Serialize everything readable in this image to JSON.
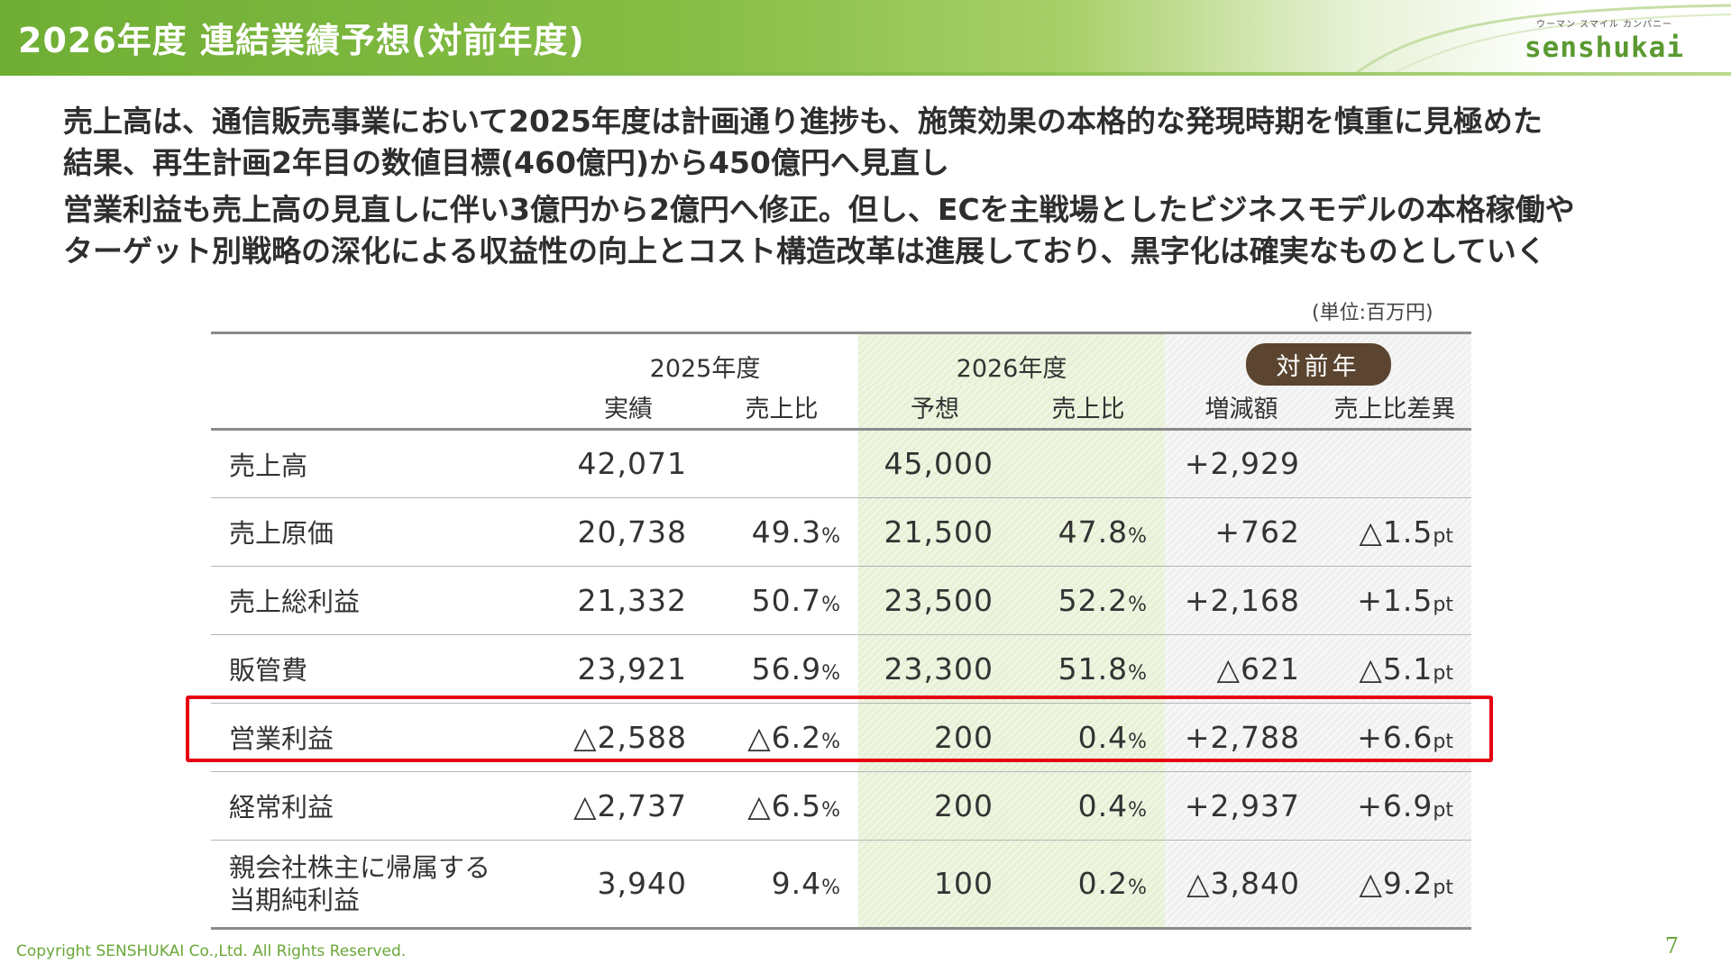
{
  "header": {
    "title": "2026年度 連結業績予想(対前年度)",
    "logo_tagline": "ウーマン スマイル カンパニー",
    "logo_word": "senshukai"
  },
  "lead": {
    "p1_line1": "売上高は、通信販売事業において2025年度は計画通り進捗も、施策効果の本格的な発現時期を慎重に見極めた",
    "p1_line2": "結果、再生計画2年目の数値目標(460億円)から450億円へ見直し",
    "p2_line1": "営業利益も売上高の見直しに伴い3億円から2億円へ修正。但し、ECを主戦場としたビジネスモデルの本格稼働や",
    "p2_line2": "ターゲット別戦略の深化による収益性の向上とコスト構造改革は進展しており、黒字化は確実なものとしていく"
  },
  "unit_note": "(単位:百万円)",
  "table": {
    "group_headers": {
      "fy2025": "2025年度",
      "fy2026": "2026年度",
      "yoy": "対前年"
    },
    "sub_headers": {
      "actual": "実績",
      "ratio_2025": "売上比",
      "forecast": "予想",
      "ratio_2026": "売上比",
      "change": "増減額",
      "ratio_diff": "売上比差異"
    },
    "rows": [
      {
        "label": "売上高",
        "actual": "42,071",
        "ratio_2025": "",
        "ratio_2025_suffix": "",
        "forecast": "45,000",
        "ratio_2026": "",
        "ratio_2026_suffix": "",
        "change": "+2,929",
        "diff": "",
        "diff_suffix": ""
      },
      {
        "label": "売上原価",
        "actual": "20,738",
        "ratio_2025": "49.3",
        "ratio_2025_suffix": "%",
        "forecast": "21,500",
        "ratio_2026": "47.8",
        "ratio_2026_suffix": "%",
        "change": "+762",
        "diff": "△1.5",
        "diff_suffix": "pt"
      },
      {
        "label": "売上総利益",
        "actual": "21,332",
        "ratio_2025": "50.7",
        "ratio_2025_suffix": "%",
        "forecast": "23,500",
        "ratio_2026": "52.2",
        "ratio_2026_suffix": "%",
        "change": "+2,168",
        "diff": "+1.5",
        "diff_suffix": "pt"
      },
      {
        "label": "販管費",
        "actual": "23,921",
        "ratio_2025": "56.9",
        "ratio_2025_suffix": "%",
        "forecast": "23,300",
        "ratio_2026": "51.8",
        "ratio_2026_suffix": "%",
        "change": "△621",
        "diff": "△5.1",
        "diff_suffix": "pt"
      },
      {
        "label": "営業利益",
        "actual": "△2,588",
        "ratio_2025": "△6.2",
        "ratio_2025_suffix": "%",
        "forecast": "200",
        "ratio_2026": "0.4",
        "ratio_2026_suffix": "%",
        "change": "+2,788",
        "diff": "+6.6",
        "diff_suffix": "pt"
      },
      {
        "label": "経常利益",
        "actual": "△2,737",
        "ratio_2025": "△6.5",
        "ratio_2025_suffix": "%",
        "forecast": "200",
        "ratio_2026": "0.4",
        "ratio_2026_suffix": "%",
        "change": "+2,937",
        "diff": "+6.9",
        "diff_suffix": "pt"
      }
    ],
    "last_row": {
      "label_line1": "親会社株主に帰属する",
      "label_line2": "当期純利益",
      "actual": "3,940",
      "ratio_2025": "9.4",
      "ratio_2025_suffix": "%",
      "forecast": "100",
      "ratio_2026": "0.2",
      "ratio_2026_suffix": "%",
      "change": "△3,840",
      "diff": "△9.2",
      "diff_suffix": "pt"
    }
  },
  "footer": {
    "copyright": "Copyright SENSHUKAI Co.,Ltd. All Rights Reserved.",
    "page_number": "7"
  },
  "colors": {
    "brand_green": "#6fae34",
    "highlight_red": "#e60012",
    "badge_brown": "#5b4530"
  }
}
